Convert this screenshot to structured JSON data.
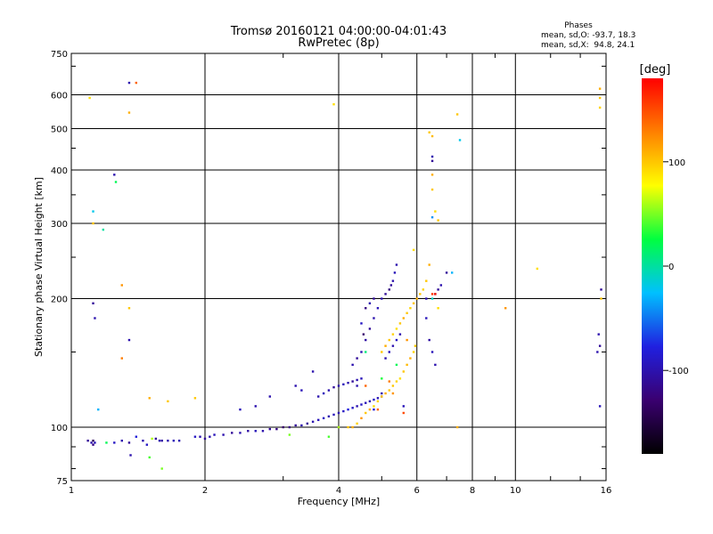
{
  "chart_data": {
    "type": "scatter",
    "title": "Tromsø 20160121 04:00:00-04:01:43",
    "subtitle": "RwPretec (8p)",
    "xlabel": "Frequency [MHz]",
    "ylabel": "Stationary phase Virtual Height [km]",
    "x_scale": "log",
    "y_scale": "log",
    "xlim": [
      1,
      16
    ],
    "ylim": [
      75,
      750
    ],
    "x_ticks": [
      1,
      2,
      4,
      6,
      8,
      10,
      16
    ],
    "y_ticks": [
      75,
      100,
      200,
      300,
      400,
      500,
      600,
      750
    ],
    "grid": true,
    "phases": {
      "title": "Phases",
      "line_o": "mean, sd,O: -93.7, 18.3",
      "line_x": "mean, sd,X:  94.8, 24.1"
    },
    "colorbar": {
      "label": "[deg]",
      "range": [
        -180,
        180
      ],
      "ticks": [
        100,
        0,
        -100
      ],
      "colormap": [
        "#000000",
        "#3a0070",
        "#2020e0",
        "#00c0ff",
        "#00ff40",
        "#ffff00",
        "#ff8000",
        "#ff0000"
      ]
    },
    "series": [
      {
        "values": [
          [
            1.09,
            93,
            -110
          ],
          [
            1.11,
            92,
            -100
          ],
          [
            1.12,
            91,
            -120
          ],
          [
            1.13,
            92,
            -95
          ],
          [
            1.12,
            93,
            -140
          ],
          [
            1.2,
            92,
            20
          ],
          [
            1.25,
            92,
            -90
          ],
          [
            1.3,
            93,
            -100
          ],
          [
            1.35,
            92,
            -110
          ],
          [
            1.36,
            86,
            -100
          ],
          [
            1.4,
            95,
            -80
          ],
          [
            1.45,
            93,
            -100
          ],
          [
            1.48,
            91,
            -90
          ],
          [
            1.52,
            94,
            60
          ],
          [
            1.55,
            94,
            -110
          ],
          [
            1.58,
            93,
            -100
          ],
          [
            1.6,
            93,
            -105
          ],
          [
            1.65,
            93,
            -100
          ],
          [
            1.7,
            93,
            -95
          ],
          [
            1.75,
            93,
            -100
          ],
          [
            1.6,
            80,
            50
          ],
          [
            1.9,
            95,
            -90
          ],
          [
            1.95,
            95,
            -100
          ],
          [
            2.0,
            94,
            -110
          ],
          [
            2.05,
            95,
            -100
          ],
          [
            2.1,
            96,
            -95
          ],
          [
            2.2,
            96,
            -100
          ],
          [
            2.3,
            97,
            -110
          ],
          [
            2.4,
            97,
            -100
          ],
          [
            2.5,
            98,
            -105
          ],
          [
            2.6,
            98,
            -95
          ],
          [
            2.7,
            98,
            -100
          ],
          [
            2.8,
            99,
            -110
          ],
          [
            2.9,
            99,
            -120
          ],
          [
            3.0,
            100,
            -130
          ],
          [
            3.1,
            100,
            -120
          ],
          [
            3.2,
            101,
            -110
          ],
          [
            3.3,
            101,
            -100
          ],
          [
            3.4,
            102,
            -110
          ],
          [
            3.5,
            103,
            -100
          ],
          [
            3.6,
            104,
            -95
          ],
          [
            3.7,
            105,
            -90
          ],
          [
            3.8,
            106,
            -100
          ],
          [
            3.9,
            107,
            -95
          ],
          [
            4.0,
            108,
            -100
          ],
          [
            4.1,
            109,
            -90
          ],
          [
            4.2,
            110,
            -80
          ],
          [
            4.3,
            111,
            -90
          ],
          [
            4.4,
            112,
            -100
          ],
          [
            4.5,
            113,
            -90
          ],
          [
            4.6,
            114,
            -95
          ],
          [
            4.7,
            115,
            -100
          ],
          [
            4.8,
            116,
            -90
          ],
          [
            4.9,
            117,
            -95
          ],
          [
            5.0,
            118,
            -100
          ],
          [
            3.6,
            118,
            -100
          ],
          [
            3.7,
            120,
            -95
          ],
          [
            3.8,
            122,
            -100
          ],
          [
            3.9,
            124,
            -110
          ],
          [
            4.0,
            125,
            -100
          ],
          [
            4.1,
            126,
            -95
          ],
          [
            4.2,
            127,
            -100
          ],
          [
            4.3,
            128,
            -110
          ],
          [
            4.4,
            129,
            -100
          ],
          [
            4.5,
            130,
            -95
          ],
          [
            4.3,
            140,
            -100
          ],
          [
            4.4,
            145,
            -110
          ],
          [
            4.5,
            150,
            -100
          ],
          [
            4.6,
            160,
            -105
          ],
          [
            4.7,
            170,
            -110
          ],
          [
            4.8,
            180,
            -100
          ],
          [
            4.9,
            190,
            -95
          ],
          [
            5.0,
            200,
            -100
          ],
          [
            5.1,
            205,
            -110
          ],
          [
            5.2,
            210,
            -120
          ],
          [
            5.25,
            215,
            -110
          ],
          [
            5.3,
            220,
            -100
          ],
          [
            5.35,
            230,
            -95
          ],
          [
            5.4,
            240,
            -100
          ],
          [
            4.6,
            190,
            -120
          ],
          [
            4.7,
            195,
            -100
          ],
          [
            4.8,
            200,
            -110
          ],
          [
            4.5,
            175,
            -90
          ],
          [
            4.55,
            165,
            -130
          ],
          [
            5.1,
            145,
            -100
          ],
          [
            5.2,
            150,
            -95
          ],
          [
            5.3,
            155,
            -100
          ],
          [
            5.4,
            160,
            -90
          ],
          [
            5.5,
            165,
            -100
          ],
          [
            4.4,
            125,
            -100
          ],
          [
            4.8,
            110,
            -80
          ],
          [
            5.6,
            112,
            -95
          ],
          [
            5.0,
            120,
            -100
          ],
          [
            6.6,
            205,
            -100
          ],
          [
            6.7,
            210,
            -110
          ],
          [
            6.8,
            215,
            -100
          ],
          [
            7.0,
            230,
            -110
          ],
          [
            6.3,
            200,
            -100
          ],
          [
            6.3,
            180,
            -95
          ],
          [
            6.4,
            160,
            -105
          ],
          [
            6.5,
            150,
            -95
          ],
          [
            6.6,
            140,
            -100
          ],
          [
            6.5,
            430,
            -100
          ],
          [
            6.5,
            420,
            -110
          ],
          [
            1.13,
            180,
            -100
          ],
          [
            1.12,
            195,
            -110
          ],
          [
            1.35,
            160,
            -100
          ],
          [
            1.35,
            640,
            -100
          ],
          [
            1.25,
            390,
            -100
          ],
          [
            3.2,
            125,
            -100
          ],
          [
            3.3,
            122,
            -95
          ],
          [
            2.8,
            118,
            -100
          ],
          [
            2.6,
            112,
            -100
          ],
          [
            2.4,
            110,
            -95
          ],
          [
            15.5,
            155,
            -110
          ],
          [
            15.4,
            165,
            -100
          ],
          [
            15.3,
            150,
            -100
          ],
          [
            15.6,
            210,
            -110
          ],
          [
            15.5,
            112,
            -95
          ],
          [
            1.12,
            320,
            -20
          ],
          [
            3.5,
            135,
            -100
          ]
        ]
      },
      {
        "values": [
          [
            1.12,
            300,
            100
          ],
          [
            1.1,
            590,
            90
          ],
          [
            1.35,
            545,
            110
          ],
          [
            1.4,
            640,
            140
          ],
          [
            1.3,
            215,
            120
          ],
          [
            1.35,
            190,
            100
          ],
          [
            1.3,
            145,
            130
          ],
          [
            1.5,
            117,
            110
          ],
          [
            1.65,
            115,
            100
          ],
          [
            1.9,
            117,
            100
          ],
          [
            3.9,
            570,
            90
          ],
          [
            4.2,
            100,
            100
          ],
          [
            4.3,
            100,
            110
          ],
          [
            4.4,
            102,
            95
          ],
          [
            4.5,
            105,
            120
          ],
          [
            4.6,
            108,
            100
          ],
          [
            4.7,
            110,
            110
          ],
          [
            4.8,
            112,
            90
          ],
          [
            4.9,
            115,
            95
          ],
          [
            5.0,
            118,
            100
          ],
          [
            5.1,
            120,
            110
          ],
          [
            5.2,
            122,
            100
          ],
          [
            5.3,
            125,
            100
          ],
          [
            5.4,
            128,
            95
          ],
          [
            5.5,
            130,
            90
          ],
          [
            5.6,
            135,
            100
          ],
          [
            5.7,
            140,
            105
          ],
          [
            5.8,
            145,
            110
          ],
          [
            5.9,
            150,
            95
          ],
          [
            5.95,
            155,
            100
          ],
          [
            5.0,
            150,
            100
          ],
          [
            5.1,
            155,
            110
          ],
          [
            5.2,
            160,
            100
          ],
          [
            5.3,
            165,
            95
          ],
          [
            5.4,
            170,
            90
          ],
          [
            5.5,
            175,
            100
          ],
          [
            5.6,
            180,
            110
          ],
          [
            5.7,
            185,
            100
          ],
          [
            5.8,
            190,
            95
          ],
          [
            5.9,
            195,
            100
          ],
          [
            6.0,
            200,
            110
          ],
          [
            6.1,
            205,
            100
          ],
          [
            6.2,
            210,
            95
          ],
          [
            6.3,
            220,
            100
          ],
          [
            6.4,
            240,
            110
          ],
          [
            5.9,
            260,
            90
          ],
          [
            6.4,
            490,
            100
          ],
          [
            6.5,
            480,
            105
          ],
          [
            6.5,
            390,
            110
          ],
          [
            6.5,
            360,
            100
          ],
          [
            6.6,
            320,
            90
          ],
          [
            6.7,
            305,
            100
          ],
          [
            7.4,
            540,
            100
          ],
          [
            7.4,
            100,
            110
          ],
          [
            9.5,
            190,
            120
          ],
          [
            11.2,
            235,
            90
          ],
          [
            15.5,
            590,
            100
          ],
          [
            15.5,
            620,
            110
          ],
          [
            15.5,
            560,
            95
          ],
          [
            15.6,
            200,
            100
          ],
          [
            6.5,
            205,
            160
          ],
          [
            6.6,
            205,
            170
          ],
          [
            4.6,
            125,
            140
          ],
          [
            5.2,
            128,
            130
          ],
          [
            5.6,
            108,
            150
          ],
          [
            4.9,
            110,
            140
          ],
          [
            5.3,
            120,
            120
          ],
          [
            5.7,
            160,
            120
          ],
          [
            6.7,
            190,
            90
          ]
        ]
      },
      {
        "values": [
          [
            1.18,
            290,
            0
          ],
          [
            1.26,
            375,
            20
          ],
          [
            1.5,
            85,
            40
          ],
          [
            6.5,
            200,
            -10
          ],
          [
            7.2,
            230,
            -30
          ],
          [
            7.5,
            470,
            -20
          ],
          [
            6.5,
            310,
            -40
          ],
          [
            1.15,
            110,
            -30
          ],
          [
            4.6,
            150,
            10
          ],
          [
            5.0,
            130,
            30
          ],
          [
            5.4,
            140,
            20
          ],
          [
            3.1,
            96,
            50
          ],
          [
            3.8,
            95,
            40
          ],
          [
            4.0,
            100,
            60
          ]
        ]
      }
    ]
  }
}
